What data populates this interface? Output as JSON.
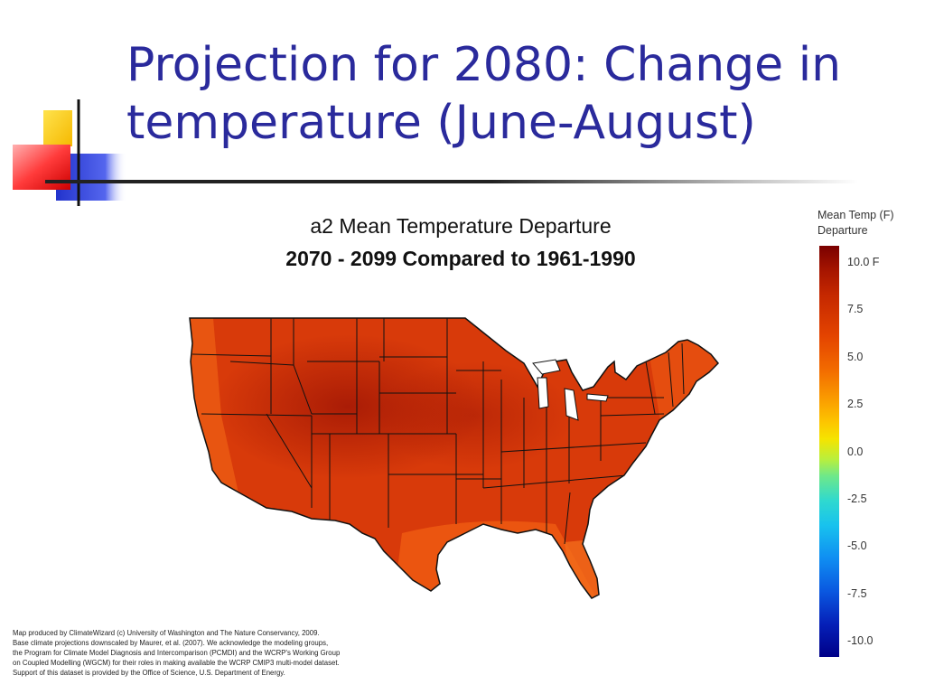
{
  "slide": {
    "title_line1": "Projection for 2080: Change in",
    "title_line2": "temperature (June-August)"
  },
  "map": {
    "title_line1": "a2 Mean Temperature Departure",
    "title_line2": "2070 - 2099 Compared to 1961-1990",
    "region": "Contiguous United States",
    "fill_color": "#d93a0a",
    "hot_core_color": "#a81a05",
    "coast_color": "#ee5a10",
    "border_color": "#111111"
  },
  "legend": {
    "title_line1": "Mean Temp (F)",
    "title_line2": "Departure",
    "ticks": [
      "10.0  F",
      "7.5",
      "5.0",
      "2.5",
      "0.0",
      "-2.5",
      "-5.0",
      "-7.5",
      "-10.0"
    ]
  },
  "credits": {
    "lines": [
      "Map produced by ClimateWizard (c) University of Washington and The Nature Conservancy, 2009.",
      "Base climate projections downscaled by Maurer, et al. (2007). We acknowledge the modeling groups,",
      "the Program for Climate Model Diagnosis and Intercomparison (PCMDI) and the WCRP's Working Group",
      "on Coupled Modelling (WGCM) for their roles in making available the WCRP CMIP3 multi-model dataset.",
      "Support of this dataset is provided by the Office of Science, U.S. Department of Energy."
    ]
  },
  "colors": {
    "title": "#2a2a9c",
    "deco_yellow": "#ffcc00",
    "deco_blue": "#3344dd",
    "deco_red": "#ff3333"
  }
}
